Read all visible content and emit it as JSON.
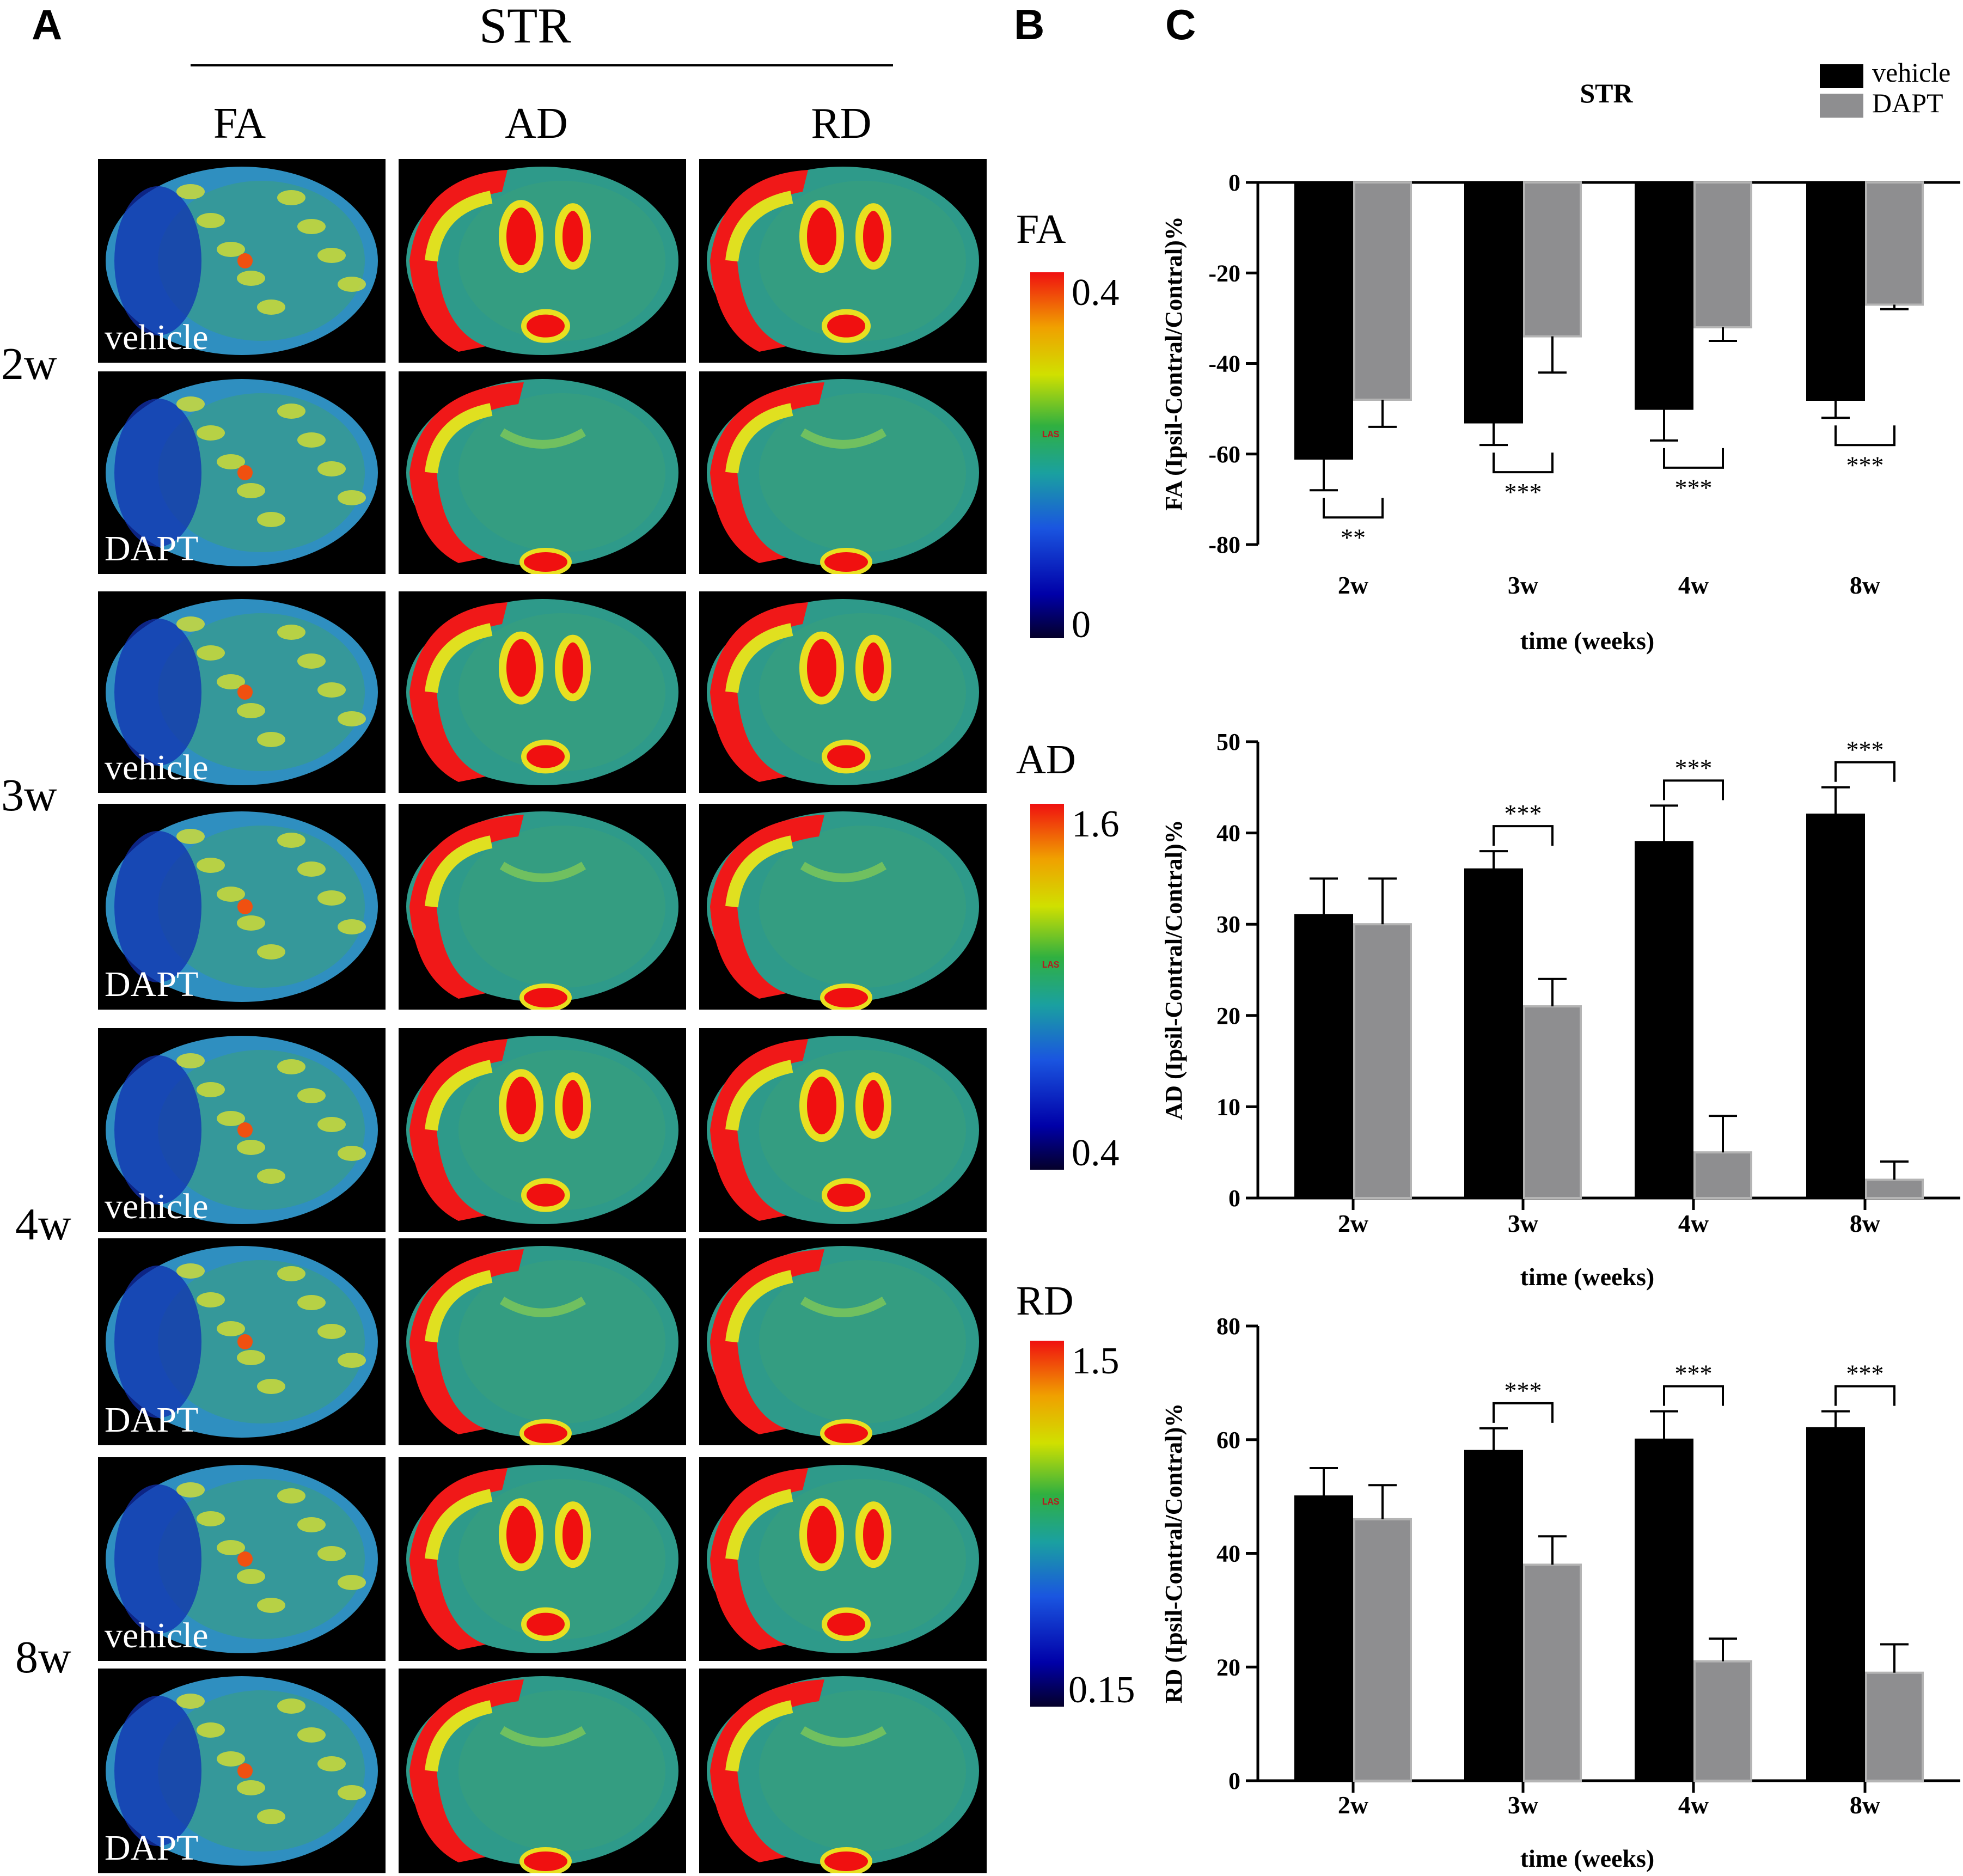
{
  "panels": {
    "a": "A",
    "b": "B",
    "c": "C"
  },
  "panel_a": {
    "region": "STR",
    "columns": [
      "FA",
      "AD",
      "RD"
    ],
    "weeks": [
      "2w",
      "3w",
      "4w",
      "8w"
    ],
    "groups": [
      "vehicle",
      "DAPT"
    ]
  },
  "panel_b": {
    "bars": [
      {
        "title": "FA",
        "max": "0.4",
        "min": "0",
        "mark": "LAS"
      },
      {
        "title": "AD",
        "max": "1.6",
        "min": "0.4",
        "mark": "LAS"
      },
      {
        "title": "RD",
        "max": "1.5",
        "min": "0.15",
        "mark": "LAS"
      }
    ]
  },
  "legend": {
    "vehicle": "vehicle",
    "dapt": "DAPT"
  },
  "colors": {
    "vehicle": "#000000",
    "dapt": "#8e8e90",
    "dapt_edge": "#b4b4b4"
  },
  "chart_data": [
    {
      "type": "bar",
      "title": "STR",
      "categories": [
        "2w",
        "3w",
        "4w",
        "8w"
      ],
      "xlabel": "time (weeks)",
      "ylabel": "FA (Ipsil-Contral/Contral)%",
      "ylim": [
        -80,
        0
      ],
      "yticks": [
        "0",
        "-20",
        "-40",
        "-60",
        "-80"
      ],
      "series": [
        {
          "name": "vehicle",
          "values": [
            -61,
            -53,
            -50,
            -48
          ],
          "errors": [
            7,
            5,
            7,
            4
          ]
        },
        {
          "name": "DAPT",
          "values": [
            -48,
            -34,
            -32,
            -27
          ],
          "errors": [
            6,
            8,
            3,
            1
          ]
        }
      ],
      "significance": [
        "**",
        "***",
        "***",
        "***"
      ]
    },
    {
      "type": "bar",
      "categories": [
        "2w",
        "3w",
        "4w",
        "8w"
      ],
      "xlabel": "time (weeks)",
      "ylabel": "AD (Ipsil-Contral/Contral)%",
      "ylim": [
        0,
        50
      ],
      "yticks": [
        "0",
        "10",
        "20",
        "30",
        "40",
        "50"
      ],
      "series": [
        {
          "name": "vehicle",
          "values": [
            31,
            36,
            39,
            42
          ],
          "errors": [
            4,
            2,
            4,
            3
          ]
        },
        {
          "name": "DAPT",
          "values": [
            30,
            21,
            5,
            2
          ],
          "errors": [
            5,
            3,
            4,
            2
          ]
        }
      ],
      "significance": [
        "",
        "***",
        "***",
        "***"
      ]
    },
    {
      "type": "bar",
      "categories": [
        "2w",
        "3w",
        "4w",
        "8w"
      ],
      "xlabel": "time (weeks)",
      "ylabel": "RD (Ipsil-Contral/Contral)%",
      "ylim": [
        0,
        80
      ],
      "yticks": [
        "0",
        "20",
        "40",
        "60",
        "80"
      ],
      "series": [
        {
          "name": "vehicle",
          "values": [
            50,
            58,
            60,
            62
          ],
          "errors": [
            5,
            4,
            5,
            3
          ]
        },
        {
          "name": "DAPT",
          "values": [
            46,
            38,
            21,
            19
          ],
          "errors": [
            6,
            5,
            4,
            5
          ]
        }
      ],
      "significance": [
        "",
        "***",
        "***",
        "***"
      ]
    }
  ]
}
